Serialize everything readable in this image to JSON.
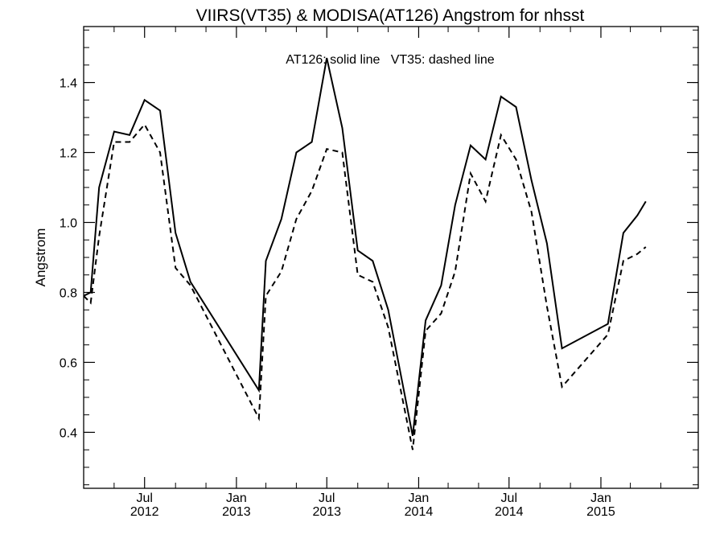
{
  "chart_data": {
    "type": "line",
    "title": "VIIRS(VT35) & MODISA(AT126)  Angstrom for nhsst",
    "annotation": "AT126: solid line   VT35: dashed line",
    "ylabel": "Angstrom",
    "xlabel": "",
    "ylim": [
      0.24,
      1.56
    ],
    "xlim": [
      "2012-03-01",
      "2015-07-15"
    ],
    "y_ticks": [
      0.4,
      0.6,
      0.8,
      1.0,
      1.2,
      1.4
    ],
    "y_tick_labels": [
      "0.4",
      "0.6",
      "0.8",
      "1.0",
      "1.2",
      "1.4"
    ],
    "x_ticks": [
      {
        "date": "2012-07-01",
        "month": "Jul",
        "year": "2012"
      },
      {
        "date": "2013-01-01",
        "month": "Jan",
        "year": "2013"
      },
      {
        "date": "2013-07-01",
        "month": "Jul",
        "year": "2013"
      },
      {
        "date": "2014-01-01",
        "month": "Jan",
        "year": "2014"
      },
      {
        "date": "2014-07-01",
        "month": "Jul",
        "year": "2014"
      },
      {
        "date": "2015-01-01",
        "month": "Jan",
        "year": "2015"
      }
    ],
    "series": [
      {
        "style": "solid",
        "points": [
          [
            "2012-03-01",
            0.79
          ],
          [
            "2012-03-15",
            0.8
          ],
          [
            "2012-04-01",
            1.1
          ],
          [
            "2012-05-01",
            1.26
          ],
          [
            "2012-06-01",
            1.25
          ],
          [
            "2012-07-01",
            1.35
          ],
          [
            "2012-08-01",
            1.32
          ],
          [
            "2012-09-01",
            0.97
          ],
          [
            "2012-10-01",
            0.83
          ],
          [
            "2013-02-15",
            0.52
          ],
          [
            "2013-03-01",
            0.89
          ],
          [
            "2013-04-01",
            1.01
          ],
          [
            "2013-05-01",
            1.2
          ],
          [
            "2013-06-01",
            1.23
          ],
          [
            "2013-07-01",
            1.47
          ],
          [
            "2013-08-01",
            1.27
          ],
          [
            "2013-09-01",
            0.92
          ],
          [
            "2013-10-01",
            0.89
          ],
          [
            "2013-11-01",
            0.75
          ],
          [
            "2013-12-20",
            0.39
          ],
          [
            "2014-01-15",
            0.72
          ],
          [
            "2014-02-15",
            0.82
          ],
          [
            "2014-03-15",
            1.05
          ],
          [
            "2014-04-15",
            1.22
          ],
          [
            "2014-05-15",
            1.18
          ],
          [
            "2014-06-15",
            1.36
          ],
          [
            "2014-07-15",
            1.33
          ],
          [
            "2014-08-15",
            1.12
          ],
          [
            "2014-09-15",
            0.94
          ],
          [
            "2014-10-15",
            0.64
          ],
          [
            "2015-01-15",
            0.71
          ],
          [
            "2015-02-15",
            0.97
          ],
          [
            "2015-03-15",
            1.02
          ],
          [
            "2015-04-01",
            1.06
          ]
        ]
      },
      {
        "style": "dashed",
        "points": [
          [
            "2012-03-01",
            0.79
          ],
          [
            "2012-03-15",
            0.77
          ],
          [
            "2012-04-01",
            0.96
          ],
          [
            "2012-05-01",
            1.23
          ],
          [
            "2012-06-01",
            1.23
          ],
          [
            "2012-07-01",
            1.28
          ],
          [
            "2012-08-01",
            1.2
          ],
          [
            "2012-09-01",
            0.87
          ],
          [
            "2012-10-01",
            0.82
          ],
          [
            "2013-02-15",
            0.44
          ],
          [
            "2013-03-01",
            0.79
          ],
          [
            "2013-04-01",
            0.86
          ],
          [
            "2013-05-01",
            1.01
          ],
          [
            "2013-06-01",
            1.09
          ],
          [
            "2013-07-01",
            1.21
          ],
          [
            "2013-08-01",
            1.2
          ],
          [
            "2013-09-01",
            0.85
          ],
          [
            "2013-10-01",
            0.83
          ],
          [
            "2013-11-01",
            0.7
          ],
          [
            "2013-12-20",
            0.35
          ],
          [
            "2014-01-15",
            0.69
          ],
          [
            "2014-02-15",
            0.74
          ],
          [
            "2014-03-15",
            0.86
          ],
          [
            "2014-04-15",
            1.14
          ],
          [
            "2014-05-15",
            1.06
          ],
          [
            "2014-06-15",
            1.25
          ],
          [
            "2014-07-15",
            1.18
          ],
          [
            "2014-08-15",
            1.03
          ],
          [
            "2014-09-15",
            0.76
          ],
          [
            "2014-10-15",
            0.53
          ],
          [
            "2015-01-15",
            0.68
          ],
          [
            "2015-02-15",
            0.89
          ],
          [
            "2015-03-15",
            0.91
          ],
          [
            "2015-04-01",
            0.93
          ]
        ]
      }
    ]
  }
}
